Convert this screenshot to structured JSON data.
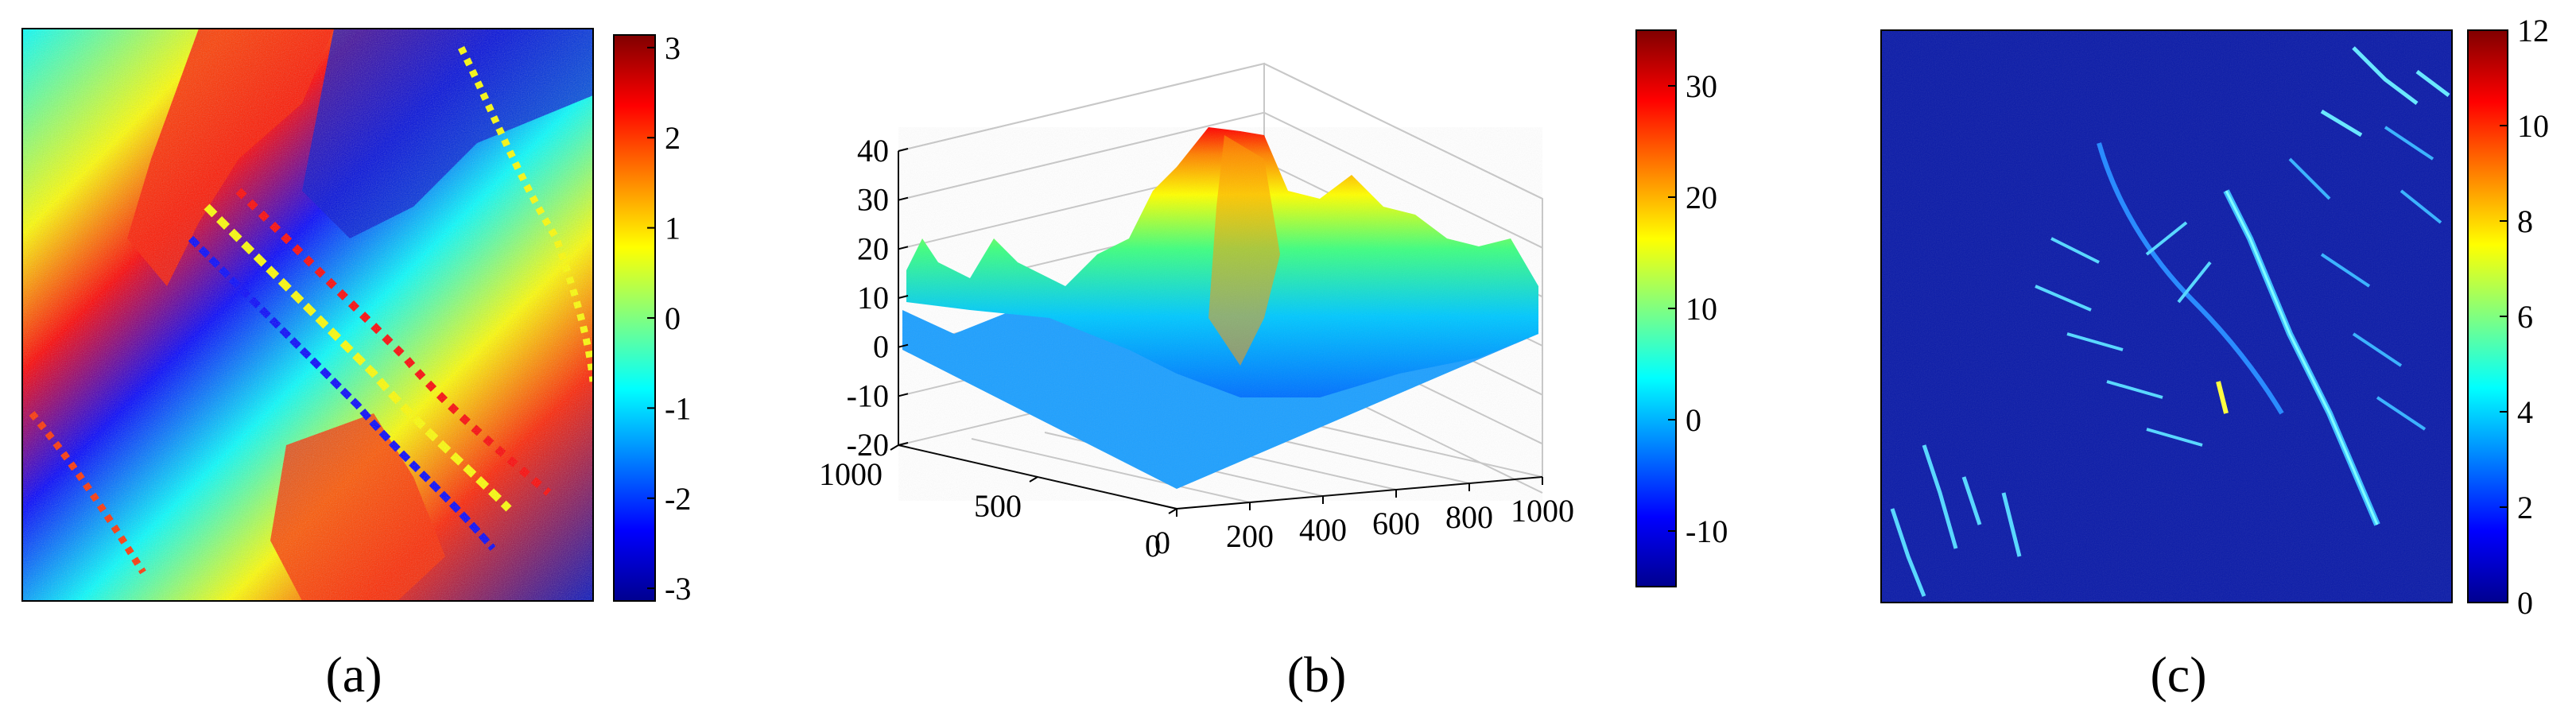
{
  "figure": {
    "panels": [
      {
        "id": "a",
        "caption": "(a)"
      },
      {
        "id": "b",
        "caption": "(b)"
      },
      {
        "id": "c",
        "caption": "(c)"
      }
    ]
  },
  "palette": {
    "colormap": [
      "#00008f",
      "#0000ff",
      "#0080ff",
      "#00ffff",
      "#80ff80",
      "#ffff00",
      "#ff8000",
      "#ff0000",
      "#800000"
    ],
    "axis": "#000000",
    "grid": "#c8c8c8"
  },
  "chart_data": [
    {
      "type": "heatmap",
      "title": "",
      "caption": "(a)",
      "description_kind": "wrapped interferometric phase image",
      "colorbar": {
        "min": -3.14,
        "max": 3.14,
        "ticks": [
          3,
          2,
          1,
          0,
          -1,
          -2,
          -3
        ],
        "tick_labels": [
          "3",
          "2",
          "1",
          "0",
          "-1",
          "-2",
          "-3"
        ]
      }
    },
    {
      "type": "surface3d",
      "title": "",
      "caption": "(b)",
      "zlim": [
        -20,
        40
      ],
      "z_ticks": [
        40,
        30,
        20,
        10,
        0,
        -10,
        -20
      ],
      "z_tick_labels": [
        "40",
        "30",
        "20",
        "10",
        "0",
        "-10",
        "-20"
      ],
      "x_ticks": [
        0,
        200,
        400,
        600,
        800,
        1000
      ],
      "x_tick_labels": [
        "0",
        "200",
        "400",
        "600",
        "800",
        "1000"
      ],
      "y_ticks": [
        0,
        500,
        1000
      ],
      "y_tick_labels": [
        "0",
        "500",
        "1000"
      ],
      "colorbar": {
        "min": -15,
        "max": 35,
        "ticks": [
          30,
          20,
          10,
          0,
          -10
        ],
        "tick_labels": [
          "30",
          "20",
          "10",
          "0",
          "-10"
        ]
      }
    },
    {
      "type": "heatmap",
      "title": "",
      "caption": "(c)",
      "description_kind": "phase gradient magnitude map",
      "colorbar": {
        "min": 0,
        "max": 12,
        "ticks": [
          12,
          10,
          8,
          6,
          4,
          2,
          0
        ],
        "tick_labels": [
          "12",
          "10",
          "8",
          "6",
          "4",
          "2",
          "0"
        ]
      }
    }
  ]
}
